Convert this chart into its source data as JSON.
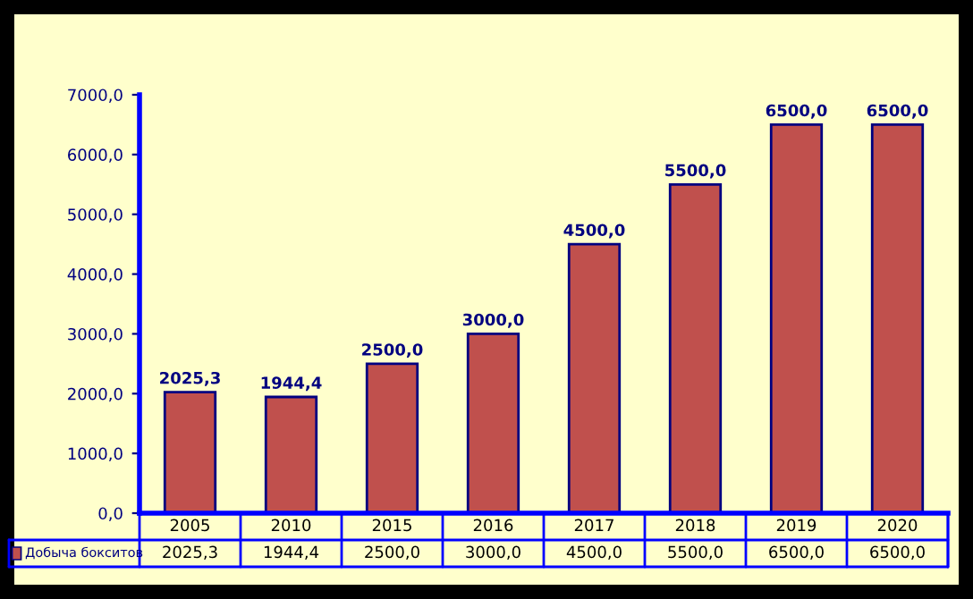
{
  "chart_data": {
    "type": "bar",
    "categories": [
      "2005",
      "2010",
      "2015",
      "2016",
      "2017",
      "2018",
      "2019",
      "2020"
    ],
    "series": [
      {
        "name": "Добыча бокситов",
        "color": "#c0504d",
        "values": [
          2025.3,
          1944.4,
          2500.0,
          3000.0,
          4500.0,
          5500.0,
          6500.0,
          6500.0
        ],
        "value_labels": [
          "2025,3",
          "1944,4",
          "2500,0",
          "3000,0",
          "4500,0",
          "5500,0",
          "6500,0",
          "6500,0"
        ]
      }
    ],
    "ylim": [
      0,
      7000
    ],
    "yticks": [
      {
        "value": 0,
        "label": "0,0"
      },
      {
        "value": 1000,
        "label": "1000,0"
      },
      {
        "value": 2000,
        "label": "2000,0"
      },
      {
        "value": 3000,
        "label": "3000,0"
      },
      {
        "value": 4000,
        "label": "4000,0"
      },
      {
        "value": 5000,
        "label": "5000,0"
      },
      {
        "value": 6000,
        "label": "6000,0"
      },
      {
        "value": 7000,
        "label": "7000,0"
      }
    ],
    "grid": false,
    "legend": "bottom"
  }
}
